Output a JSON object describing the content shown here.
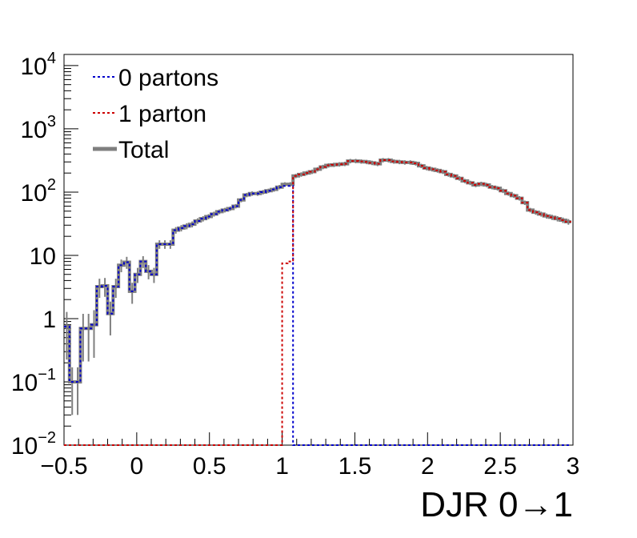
{
  "chart_data": {
    "type": "line",
    "title": "",
    "xlabel": "DJR 0→1",
    "ylabel": "",
    "xlim": [
      -0.5,
      3.0
    ],
    "ylim": [
      0.01,
      15000
    ],
    "yscale": "log",
    "step": true,
    "grid": false,
    "legend_position": "top-left",
    "x_tick_labels": [
      "−0.5",
      "0",
      "0.5",
      "1",
      "1.5",
      "2",
      "2.5",
      "3"
    ],
    "x_tick_values": [
      -0.5,
      0,
      0.5,
      1,
      1.5,
      2,
      2.5,
      3
    ],
    "y_tick_labels": [
      {
        "base": "10",
        "exp": "−2",
        "value": 0.01
      },
      {
        "base": "10",
        "exp": "−1",
        "value": 0.1
      },
      {
        "base": "1",
        "exp": "",
        "value": 1
      },
      {
        "base": "10",
        "exp": "",
        "value": 10
      },
      {
        "base": "10",
        "exp": "2",
        "value": 100
      },
      {
        "base": "10",
        "exp": "3",
        "value": 1000
      },
      {
        "base": "10",
        "exp": "4",
        "value": 10000
      }
    ],
    "bin_edges_start": -0.5,
    "bin_width": 0.0375,
    "series": [
      {
        "name": "0 partons",
        "color": "#0000cc",
        "style": "dotted",
        "values": [
          0.75,
          0.1,
          0.1,
          0.7,
          0.7,
          0.8,
          3.2,
          3.3,
          1.2,
          3.2,
          7.0,
          7.8,
          2.7,
          5.0,
          8.0,
          5.6,
          5.0,
          15.0,
          15.0,
          15.0,
          25.0,
          27.0,
          29.0,
          31.0,
          35.0,
          38.0,
          41.0,
          45.0,
          49.0,
          52.0,
          55.0,
          60.0,
          75.0,
          90.0,
          95.0,
          95.0,
          100.0,
          105.0,
          110.0,
          120.0,
          125.0,
          125.0,
          0.01,
          0.01,
          0.01,
          0.01,
          0.01,
          0.01,
          0.01,
          0.01,
          0.01,
          0.01,
          0.01,
          0.01,
          0.01,
          0.01,
          0.01,
          0.01,
          0.01,
          0.01,
          0.01,
          0.01,
          0.01,
          0.01,
          0.01,
          0.01,
          0.01,
          0.01,
          0.01,
          0.01,
          0.01,
          0.01,
          0.01,
          0.01,
          0.01,
          0.01,
          0.01,
          0.01,
          0.01,
          0.01,
          0.01,
          0.01,
          0.01,
          0.01,
          0.01,
          0.01,
          0.01,
          0.01,
          0.01,
          0.01,
          0.01,
          0.01,
          0.01
        ]
      },
      {
        "name": "1 parton",
        "color": "#cc0000",
        "style": "dotted",
        "values": [
          0.01,
          0.01,
          0.01,
          0.01,
          0.01,
          0.01,
          0.01,
          0.01,
          0.01,
          0.01,
          0.01,
          0.01,
          0.01,
          0.01,
          0.01,
          0.01,
          0.01,
          0.01,
          0.01,
          0.01,
          0.01,
          0.01,
          0.01,
          0.01,
          0.01,
          0.01,
          0.01,
          0.01,
          0.01,
          0.01,
          0.01,
          0.01,
          0.01,
          0.01,
          0.01,
          0.01,
          0.01,
          0.01,
          0.01,
          0.01,
          7.5,
          8.0,
          180.0,
          190.0,
          200.0,
          210.0,
          230.0,
          250.0,
          265.0,
          270.0,
          275.0,
          280.0,
          310.0,
          310.0,
          305.0,
          300.0,
          290.0,
          280.0,
          320.0,
          320.0,
          305.0,
          300.0,
          295.0,
          295.0,
          285.0,
          260.0,
          240.0,
          230.0,
          220.0,
          210.0,
          190.0,
          180.0,
          165.0,
          150.0,
          140.0,
          130.0,
          135.0,
          130.0,
          120.0,
          115.0,
          105.0,
          95.0,
          88.0,
          80.0,
          68.0,
          52.0,
          48.0,
          45.0,
          42.0,
          40.0,
          38.0,
          36.0,
          34.0
        ]
      },
      {
        "name": "Total",
        "color": "#7f7f7f",
        "style": "solid",
        "values": [
          0.75,
          0.1,
          0.1,
          0.7,
          0.7,
          0.8,
          3.2,
          3.3,
          1.2,
          3.2,
          7.0,
          7.8,
          2.7,
          5.0,
          8.0,
          5.6,
          5.0,
          15.0,
          15.0,
          15.0,
          25.0,
          27.0,
          29.0,
          31.0,
          35.0,
          38.0,
          41.0,
          45.0,
          49.0,
          52.0,
          55.0,
          60.0,
          75.0,
          90.0,
          95.0,
          95.0,
          100.0,
          105.0,
          110.0,
          120.0,
          132.5,
          133.0,
          180.0,
          190.0,
          200.0,
          210.0,
          230.0,
          250.0,
          265.0,
          270.0,
          275.0,
          280.0,
          310.0,
          310.0,
          305.0,
          300.0,
          290.0,
          280.0,
          320.0,
          320.0,
          305.0,
          300.0,
          295.0,
          295.0,
          285.0,
          260.0,
          240.0,
          230.0,
          220.0,
          210.0,
          190.0,
          180.0,
          165.0,
          150.0,
          140.0,
          130.0,
          135.0,
          130.0,
          120.0,
          115.0,
          105.0,
          95.0,
          88.0,
          80.0,
          68.0,
          52.0,
          48.0,
          45.0,
          42.0,
          40.0,
          38.0,
          36.0,
          34.0
        ]
      }
    ]
  }
}
